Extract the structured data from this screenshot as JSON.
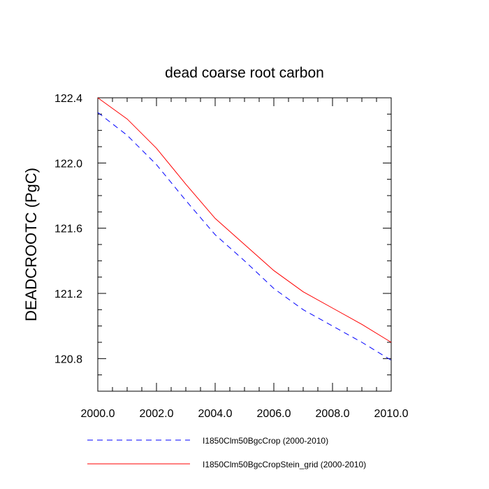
{
  "chart_data": {
    "type": "line",
    "title": "dead coarse root carbon",
    "xlabel": "",
    "ylabel": "DEADCROOTC  (PgC)",
    "xlim": [
      2000,
      2010
    ],
    "ylim": [
      120.6,
      122.4
    ],
    "x_ticks": [
      "2000.0",
      "2002.0",
      "2004.0",
      "2006.0",
      "2008.0",
      "2010.0"
    ],
    "y_ticks": [
      "120.8",
      "121.2",
      "121.6",
      "122.0",
      "122.4"
    ],
    "x": [
      2000,
      2001,
      2002,
      2003,
      2004,
      2005,
      2006,
      2007,
      2008,
      2009,
      2010
    ],
    "series": [
      {
        "name": "I1850Clm50BgcCrop (2000-2010)",
        "color": "#0000ff",
        "dash": "dashed",
        "values": [
          122.31,
          122.17,
          121.99,
          121.77,
          121.56,
          121.4,
          121.23,
          121.1,
          121.0,
          120.9,
          120.79
        ]
      },
      {
        "name": "I1850Clm50BgcCropStein_grid (2000-2010)",
        "color": "#ff0000",
        "dash": "solid",
        "values": [
          122.4,
          122.27,
          122.09,
          121.87,
          121.66,
          121.5,
          121.34,
          121.21,
          121.11,
          121.01,
          120.9
        ]
      }
    ],
    "grid": false,
    "legend_position": "bottom"
  }
}
